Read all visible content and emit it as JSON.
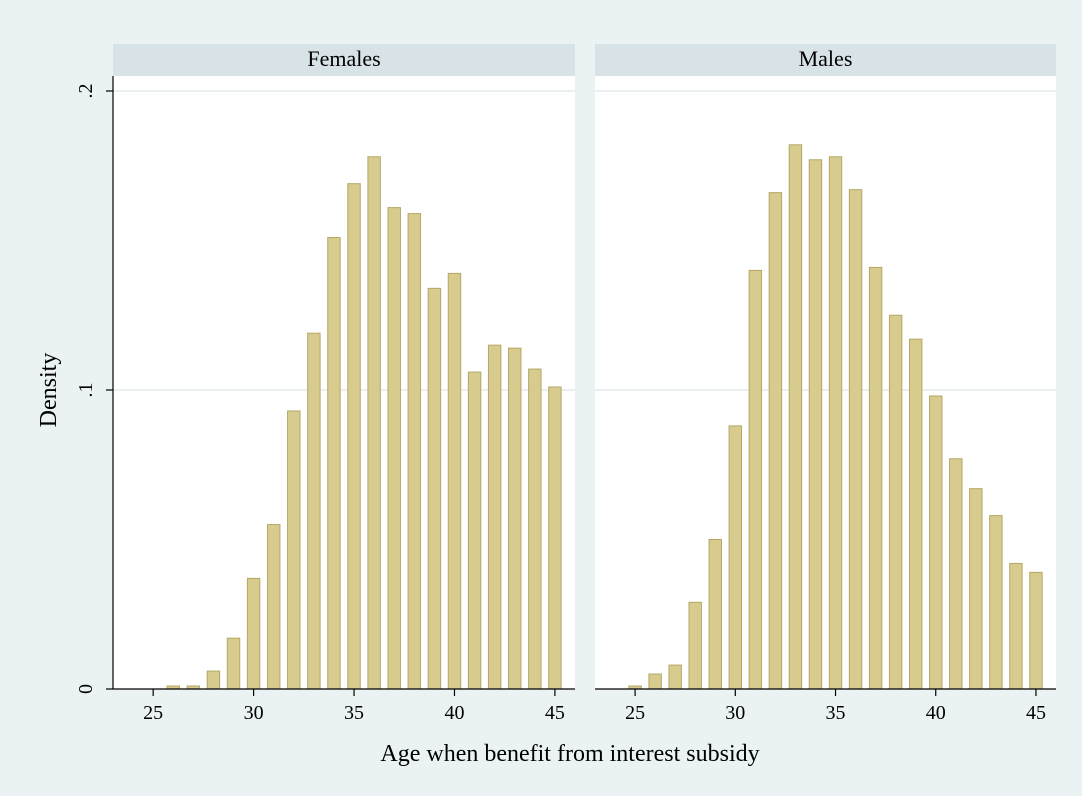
{
  "chart_data": {
    "type": "bar",
    "xlabel": "Age when benefit from interest subsidy",
    "ylabel": "Density",
    "ylim": [
      0,
      0.2
    ],
    "xlim": [
      23,
      46
    ],
    "y_ticks": [
      {
        "value": 0,
        "label": "0"
      },
      {
        "value": 0.1,
        "label": ".1"
      },
      {
        "value": 0.2,
        "label": ".2"
      }
    ],
    "x_ticks": [
      {
        "value": 25,
        "label": "25"
      },
      {
        "value": 30,
        "label": "30"
      },
      {
        "value": 35,
        "label": "35"
      },
      {
        "value": 40,
        "label": "40"
      },
      {
        "value": 45,
        "label": "45"
      }
    ],
    "grid": true,
    "colors": {
      "bar_fill": "#d7cc8d",
      "bar_edge": "#b5a766",
      "panel_header": "#d8e3e8",
      "background": "#eaf2f3"
    },
    "panels": [
      {
        "title": "Females",
        "x": [
          25,
          26,
          27,
          28,
          29,
          30,
          31,
          32,
          33,
          34,
          35,
          36,
          37,
          38,
          39,
          40,
          41,
          42,
          43,
          44,
          45
        ],
        "values": [
          0.0,
          0.001,
          0.001,
          0.006,
          0.017,
          0.037,
          0.055,
          0.093,
          0.119,
          0.151,
          0.169,
          0.178,
          0.161,
          0.159,
          0.134,
          0.139,
          0.106,
          0.115,
          0.114,
          0.107,
          0.101
        ]
      },
      {
        "title": "Males",
        "x": [
          25,
          26,
          27,
          28,
          29,
          30,
          31,
          32,
          33,
          34,
          35,
          36,
          37,
          38,
          39,
          40,
          41,
          42,
          43,
          44,
          45
        ],
        "values": [
          0.001,
          0.005,
          0.008,
          0.029,
          0.05,
          0.088,
          0.14,
          0.166,
          0.182,
          0.177,
          0.178,
          0.167,
          0.141,
          0.125,
          0.117,
          0.098,
          0.077,
          0.067,
          0.058,
          0.042,
          0.039
        ]
      }
    ]
  }
}
